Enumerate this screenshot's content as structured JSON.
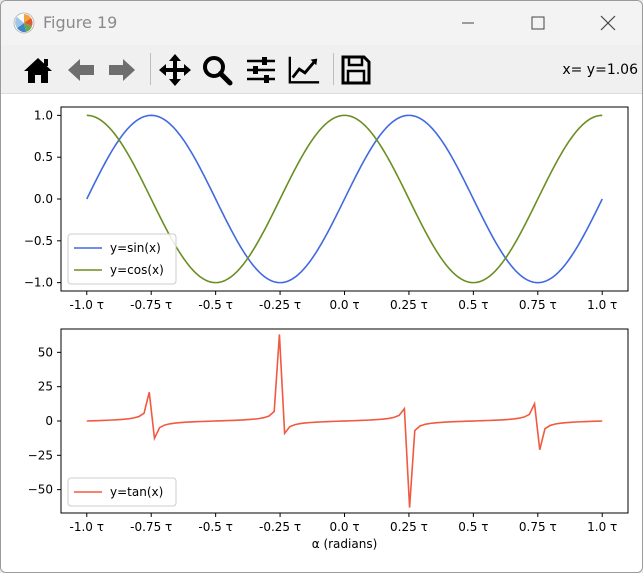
{
  "window": {
    "title": "Figure 19",
    "controls": [
      "minimize-icon",
      "maximize-icon",
      "close-icon"
    ]
  },
  "toolbar": {
    "tools": [
      {
        "name": "home",
        "icon": "home-icon"
      },
      {
        "name": "back",
        "icon": "arrow-left-icon"
      },
      {
        "name": "forward",
        "icon": "arrow-right-icon"
      },
      {
        "name": "pan",
        "icon": "move-icon"
      },
      {
        "name": "zoom",
        "icon": "magnifier-icon"
      },
      {
        "name": "subplots",
        "icon": "sliders-icon"
      },
      {
        "name": "customize",
        "icon": "chart-line-icon"
      },
      {
        "name": "save",
        "icon": "floppy-disk-icon"
      }
    ],
    "coords_text": "x= y=1.06"
  },
  "chart_data": [
    {
      "type": "line",
      "x_range": [
        -1.0,
        1.0
      ],
      "x_unit": "τ",
      "xticks": [
        "-1.0 τ",
        "-0.75 τ",
        "-0.5 τ",
        "-0.25 τ",
        "0.0 τ",
        "0.25 τ",
        "0.5 τ",
        "0.75 τ",
        "1.0 τ"
      ],
      "yticks": [
        "1.0",
        "0.5",
        "0.0",
        "−0.5",
        "−1.0"
      ],
      "ylim": [
        -1.1,
        1.1
      ],
      "series": [
        {
          "name": "y=sin(x)",
          "color": "#4169e1",
          "function": "sin"
        },
        {
          "name": "y=cos(x)",
          "color": "#6b8e23",
          "function": "cos"
        }
      ],
      "legend_placement": "lower-left",
      "grid": false
    },
    {
      "type": "line",
      "x_range": [
        -1.0,
        1.0
      ],
      "x_unit": "τ",
      "xticks": [
        "-1.0 τ",
        "-0.75 τ",
        "-0.5 τ",
        "-0.25 τ",
        "0.0 τ",
        "0.25 τ",
        "0.5 τ",
        "0.75 τ",
        "1.0 τ"
      ],
      "yticks": [
        "50",
        "25",
        "0",
        "−25",
        "−50"
      ],
      "ylim": [
        -67,
        67
      ],
      "xlabel": "α (radians)",
      "series": [
        {
          "name": "y=tan(x)",
          "color": "#f05a40",
          "function": "tan",
          "samples": 100
        }
      ],
      "legend_placement": "lower-left",
      "grid": false
    }
  ]
}
